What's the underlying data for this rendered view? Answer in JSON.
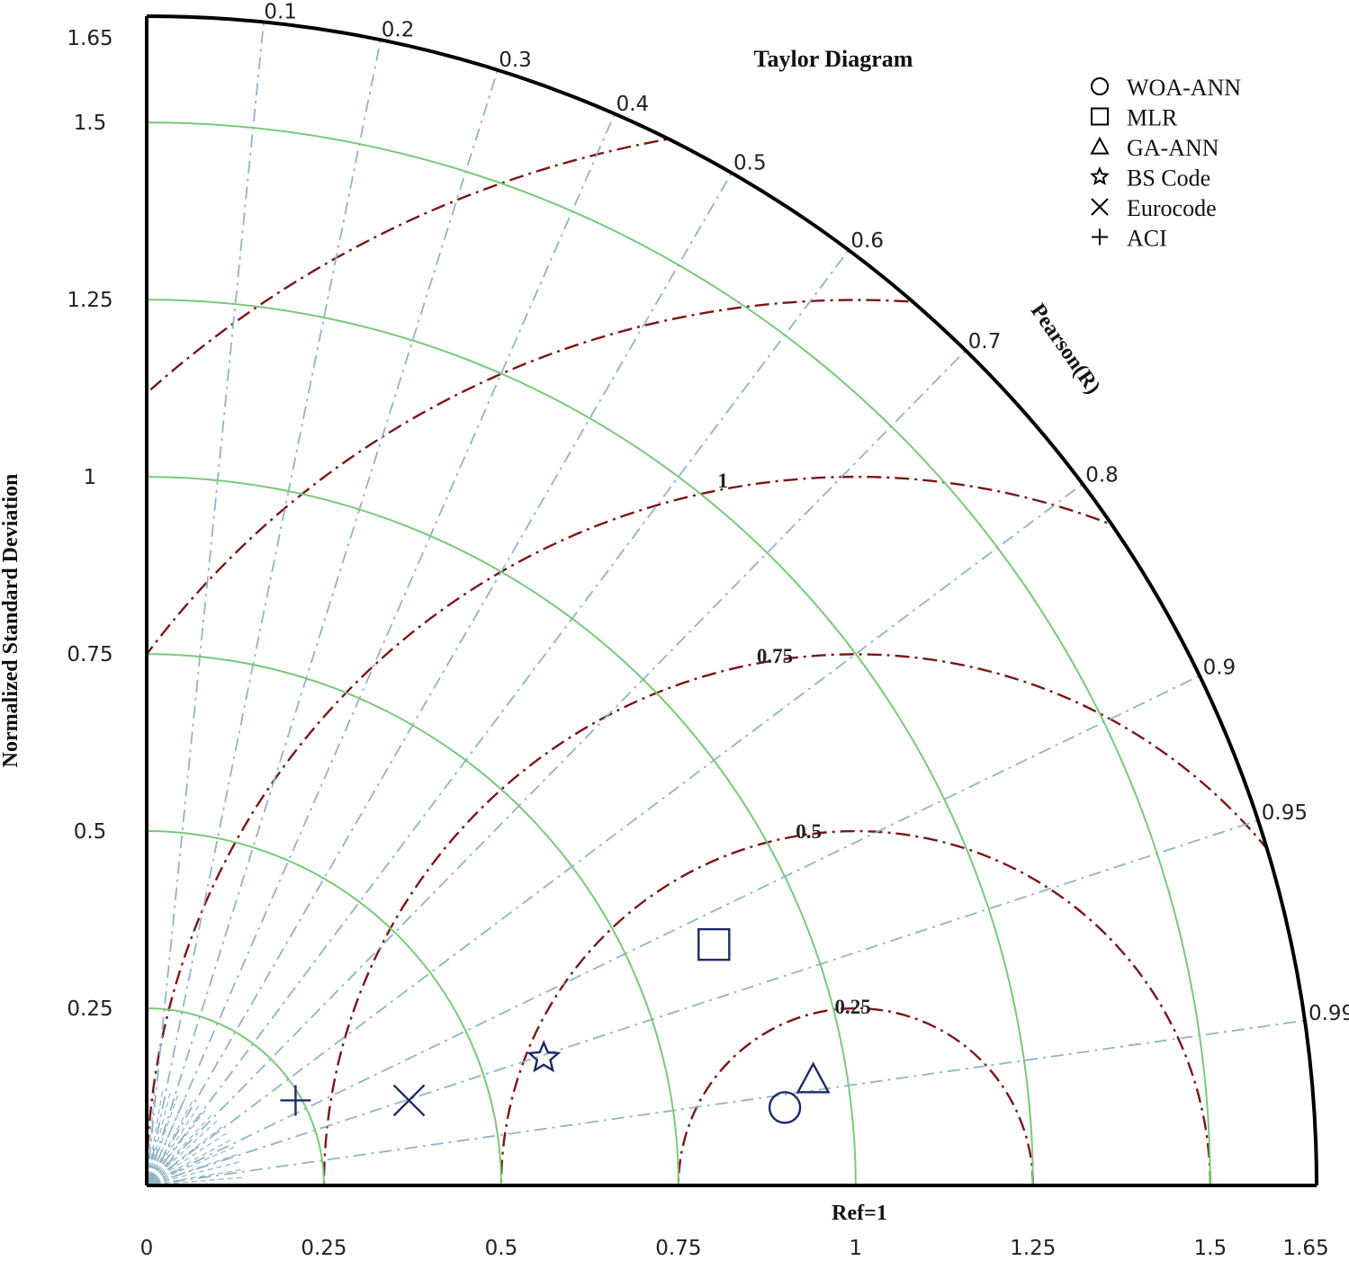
{
  "chart_data": {
    "type": "taylor",
    "title": "Taylor Diagram",
    "ylabel": "Normalized Standard Deviation",
    "xlabel": "Ref=1",
    "corr_axis_label": "Pearson(R)",
    "std_max": 1.65,
    "reference_std": 1,
    "std_ticks": [
      "0",
      "0.25",
      "0.5",
      "0.75",
      "1",
      "1.25",
      "1.5",
      "1.65"
    ],
    "y_ticks": [
      "0.25",
      "0.5",
      "0.75",
      "1",
      "1.25",
      "1.5",
      "1.65"
    ],
    "std_arc_values": [
      0.25,
      0.5,
      0.75,
      1,
      1.25,
      1.5
    ],
    "correlation_ticks": [
      "0.1",
      "0.2",
      "0.3",
      "0.4",
      "0.5",
      "0.6",
      "0.7",
      "0.8",
      "0.9",
      "0.95",
      "0.99"
    ],
    "rms_values": [
      0.25,
      0.5,
      0.75,
      1,
      1.25,
      1.5
    ],
    "rms_labels": [
      "0.25",
      "0.5",
      "0.75",
      "1"
    ],
    "series": [
      {
        "name": "WOA-ANN",
        "marker": "circle",
        "x": 0.9,
        "y": 0.11
      },
      {
        "name": "MLR",
        "marker": "square",
        "x": 0.8,
        "y": 0.34
      },
      {
        "name": "GA-ANN",
        "marker": "triangle",
        "x": 0.94,
        "y": 0.15
      },
      {
        "name": "BS Code",
        "marker": "star",
        "x": 0.56,
        "y": 0.18
      },
      {
        "name": "Eurocode",
        "marker": "x",
        "x": 0.37,
        "y": 0.12
      },
      {
        "name": "ACI",
        "marker": "plus",
        "x": 0.21,
        "y": 0.12
      }
    ],
    "colors": {
      "std_arcs": "#79c979",
      "correlation_lines": "#8fb5c4",
      "rms_arcs": "#7a1616",
      "markers": "#1f2a6b",
      "outer_axis": "#000000"
    }
  }
}
